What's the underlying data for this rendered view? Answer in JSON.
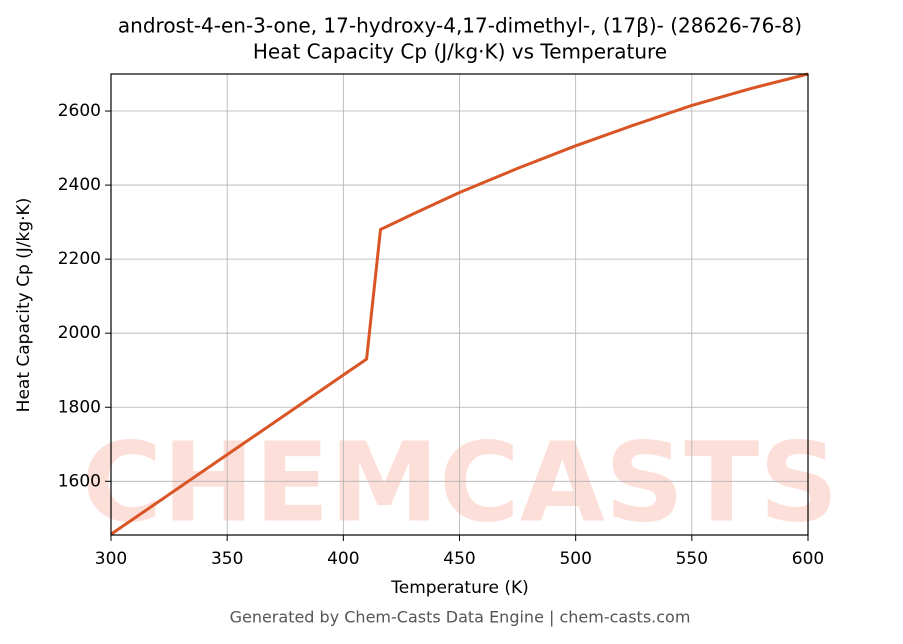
{
  "chart_data": {
    "type": "line",
    "title": "androst-4-en-3-one, 17-hydroxy-4,17-dimethyl-, (17β)- (28626-76-8)",
    "subtitle": "Heat Capacity Cp (J/kg·K) vs Temperature",
    "x_label": "Temperature (K)",
    "y_label": "Heat Capacity Cp (J/kg·K)",
    "footer": "Generated by Chem-Casts Data Engine | chem-casts.com",
    "watermark": "CHEMCASTS",
    "x": [
      300,
      350,
      400,
      410,
      416,
      430,
      450,
      475,
      500,
      525,
      550,
      575,
      600
    ],
    "series": [
      {
        "name": "Cp",
        "color": "#d95525",
        "values": [
          1457,
          1672,
          1887,
          1930,
          2280,
          2322,
          2380,
          2445,
          2506,
          2562,
          2615,
          2660,
          2700
        ]
      }
    ],
    "xlim": [
      300,
      600
    ],
    "ylim": [
      1455,
      2700
    ],
    "xticks": [
      300,
      350,
      400,
      450,
      500,
      550,
      600
    ],
    "yticks": [
      1600,
      1800,
      2000,
      2200,
      2400,
      2600
    ],
    "grid": true
  }
}
